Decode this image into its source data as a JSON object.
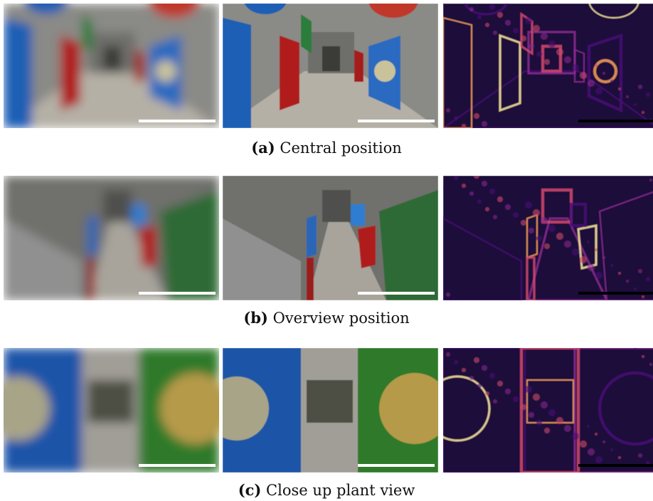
{
  "panels": [
    {
      "label": "(a)",
      "caption": "Central position"
    },
    {
      "label": "(b)",
      "caption": "Overview position"
    },
    {
      "label": "(c)",
      "caption": "Close up plant view"
    }
  ]
}
